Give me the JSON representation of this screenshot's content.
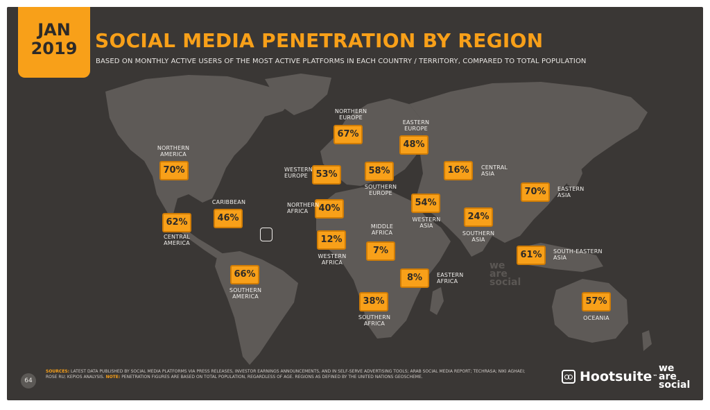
{
  "header": {
    "month": "JAN",
    "year": "2019",
    "title": "SOCIAL MEDIA PENETRATION BY REGION",
    "subtitle": "BASED ON MONTHLY ACTIVE USERS OF THE MOST ACTIVE PLATFORMS IN EACH COUNTRY / TERRITORY, COMPARED TO TOTAL POPULATION"
  },
  "regions": [
    {
      "id": "northern-america",
      "name": [
        "NORTHERN",
        "AMERICA"
      ],
      "value": "70%"
    },
    {
      "id": "caribbean",
      "name": [
        "CARIBBEAN"
      ],
      "value": "46%"
    },
    {
      "id": "central-america",
      "name": [
        "CENTRAL",
        "AMERICA"
      ],
      "value": "62%"
    },
    {
      "id": "southern-america",
      "name": [
        "SOUTHERN",
        "AMERICA"
      ],
      "value": "66%"
    },
    {
      "id": "northern-europe",
      "name": [
        "NORTHERN",
        "EUROPE"
      ],
      "value": "67%"
    },
    {
      "id": "western-europe",
      "name": [
        "WESTERN",
        "EUROPE"
      ],
      "value": "53%"
    },
    {
      "id": "southern-europe",
      "name": [
        "SOUTHERN",
        "EUROPE"
      ],
      "value": "58%"
    },
    {
      "id": "eastern-europe",
      "name": [
        "EASTERN",
        "EUROPE"
      ],
      "value": "48%"
    },
    {
      "id": "northern-africa",
      "name": [
        "NORTHERN",
        "AFRICA"
      ],
      "value": "40%"
    },
    {
      "id": "western-africa",
      "name": [
        "WESTERN",
        "AFRICA"
      ],
      "value": "12%"
    },
    {
      "id": "middle-africa",
      "name": [
        "MIDDLE",
        "AFRICA"
      ],
      "value": "7%"
    },
    {
      "id": "eastern-africa",
      "name": [
        "EASTERN",
        "AFRICA"
      ],
      "value": "8%"
    },
    {
      "id": "southern-africa",
      "name": [
        "SOUTHERN",
        "AFRICA"
      ],
      "value": "38%"
    },
    {
      "id": "western-asia",
      "name": [
        "WESTERN",
        "ASIA"
      ],
      "value": "54%"
    },
    {
      "id": "central-asia",
      "name": [
        "CENTRAL",
        "ASIA"
      ],
      "value": "16%"
    },
    {
      "id": "southern-asia",
      "name": [
        "SOUTHERN",
        "ASIA"
      ],
      "value": "24%"
    },
    {
      "id": "eastern-asia",
      "name": [
        "EASTERN",
        "ASIA"
      ],
      "value": "70%"
    },
    {
      "id": "south-eastern-asia",
      "name": [
        "SOUTH-EASTERN",
        "ASIA"
      ],
      "value": "61%"
    },
    {
      "id": "oceania",
      "name": [
        "OCEANIA"
      ],
      "value": "57%"
    }
  ],
  "watermark": [
    "we",
    "are",
    "social"
  ],
  "footer": {
    "page_number": "64",
    "sources_label": "SOURCES:",
    "sources_text": " LATEST DATA PUBLISHED BY SOCIAL MEDIA PLATFORMS VIA PRESS RELEASES, INVESTOR EARNINGS ANNOUNCEMENTS, AND IN SELF-SERVE ADVERTISING TOOLS; ARAB SOCIAL MEDIA REPORT; TECHRASA; NIKI AGHAEI; ROSE RU; KEPIOS ANALYSIS. ",
    "note_label": "NOTE:",
    "note_text": " PENETRATION FIGURES ARE BASED ON TOTAL POPULATION, REGARDLESS OF AGE. REGIONS AS DEFINED BY THE UNITED NATIONS GEOSCHEME.",
    "hootsuite": "Hootsuite",
    "tm": "™",
    "we_are_social": [
      "we",
      "are",
      "social"
    ]
  },
  "colors": {
    "background": "#3a3735",
    "land": "#5e5a57",
    "accent": "#f8a019",
    "accent_border": "#cf7c06"
  }
}
